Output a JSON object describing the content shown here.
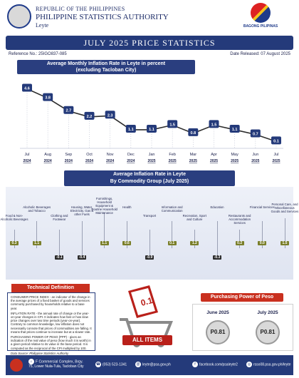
{
  "header": {
    "republic": "REPUBLIC OF THE PHILIPPINES",
    "agency": "PHILIPPINE STATISTICS AUTHORITY",
    "province": "Leyte",
    "brand": "BAGONG PILIPINAS"
  },
  "title": "JULY 2025 PRICE STATISTICS",
  "reference": "Reference No.: 25IGO837-085",
  "date_released": "Date Released: 07 August 2025",
  "chart_data": [
    {
      "type": "line",
      "title": "Average Monthly Inflation Rate in Leyte in percent",
      "subtitle": "(excluding Tacloban City)",
      "categories": [
        {
          "month": "Jul",
          "year": "2024"
        },
        {
          "month": "Aug",
          "year": "2024"
        },
        {
          "month": "Sep",
          "year": "2024"
        },
        {
          "month": "Oct",
          "year": "2024"
        },
        {
          "month": "Nov",
          "year": "2024"
        },
        {
          "month": "Dec",
          "year": "2024"
        },
        {
          "month": "Jan",
          "year": "2025"
        },
        {
          "month": "Feb",
          "year": "2025"
        },
        {
          "month": "Mar",
          "year": "2025"
        },
        {
          "month": "Apr",
          "year": "2025"
        },
        {
          "month": "May",
          "year": "2025"
        },
        {
          "month": "Jun",
          "year": "2025"
        },
        {
          "month": "Jul",
          "year": "2025"
        }
      ],
      "values": [
        4.6,
        3.8,
        2.7,
        2.2,
        2.3,
        1.1,
        1.1,
        1.5,
        0.8,
        1.5,
        1.1,
        0.7,
        0.1
      ],
      "ylim": [
        0,
        5
      ],
      "colors": {
        "line": "#2c2c2c",
        "label_bg": "#243a7a"
      }
    },
    {
      "type": "bar",
      "title": "Average Inflation Rate in Leyte",
      "subtitle": "By Commodity Group (July 2025)",
      "categories": [
        "Food & Non-Alcoholic Beverages",
        "Alcoholic Beverages and Tobacco",
        "Clothing and Footwear",
        "Housing, Water, Electricity, Gas & other Fuels",
        "Furnishings, Household Equipment & Routine Household Maintenance",
        "Health",
        "Transport",
        "Information and Communication",
        "Recreation, Sport and Culture",
        "Education",
        "Restaurants and Accommodation Services",
        "Financial Services",
        "Personal Care, and Miscellaneous Goods and Services"
      ],
      "values": [
        0.3,
        1.1,
        -0.1,
        -0.4,
        1.1,
        0.6,
        -0.9,
        0.1,
        1.2,
        -0.3,
        0.2,
        0.0,
        1.5
      ],
      "labels": [
        "0.3",
        "1.1",
        "-0.1",
        "-0.4",
        "1.1",
        "0.6",
        "-0.9",
        "0.1",
        "1.2",
        "-0.3",
        "0.2",
        "0.0",
        "1.5"
      ],
      "colors": {
        "positive": "#7a7f2a",
        "negative": "#2b2b2b",
        "bar": "#8c8c8c"
      }
    }
  ],
  "technical": {
    "heading": "Technical Definition",
    "p1": "CONSUMER PRICE INDEX - an indicator of the change in the average prices of a fixed basket of goods and services commonly purchased by households relative to a base year.",
    "p2": "INFLATION RATE - the annual rate of change or the year-on-year changes in CPI. It indicates how fast or how slow price changes over two time periods (year-on-year). Contrary to common knowledge, low inflation does not necessarily connote that prices of commodities are falling. It means that prices continue to increase but at a slower rate.",
    "p3": "PURCHASING POWER OF PESO (PPP) - gives an indication of the real value of peso (how much it is worth) in a given period relative to its value in the base period. It is computed as the reciprocal of the CPI multiplied by 100.",
    "source": "Data Source: Philippine Statistics Authority"
  },
  "center": {
    "value": "0.1",
    "all_items": "ALL ITEMS"
  },
  "purchasing_power": {
    "heading": "Purchasing Power of Peso",
    "items": [
      {
        "month": "June 2025",
        "value": "P0.81"
      },
      {
        "month": "July 2025",
        "value": "P0.81"
      }
    ]
  },
  "footer": {
    "address": "F Cornmercial Complex, Brgy. 75, Lower Nula-Tula, Tacloban City",
    "phone": "(053) 523-1341",
    "email": "leyte@psa.gov.ph",
    "facebook": "facebook.com/psaleyte2",
    "web": "rsso08.psa.gov.ph/leyte"
  }
}
